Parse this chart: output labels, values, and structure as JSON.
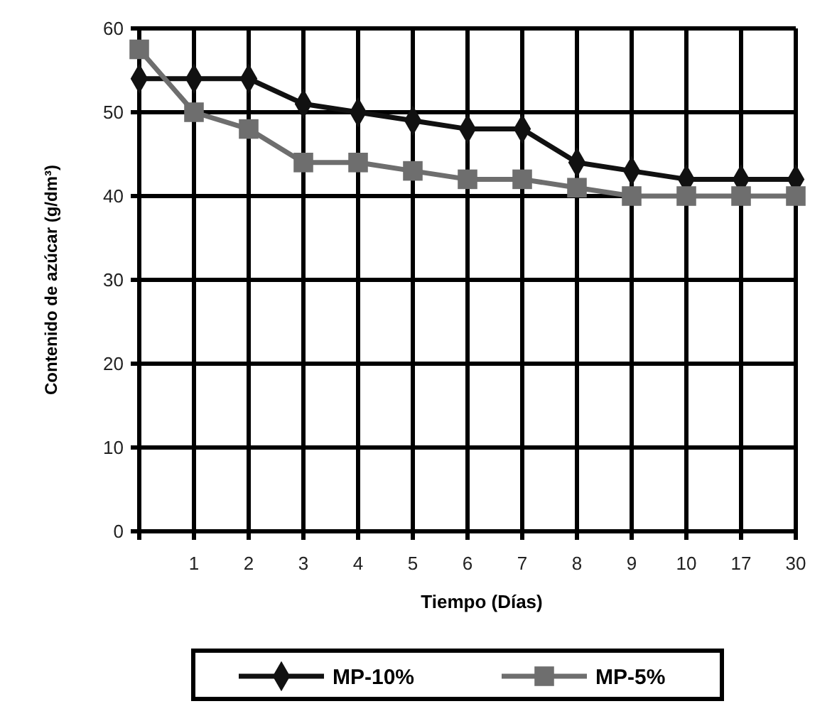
{
  "chart_data": {
    "type": "line",
    "xlabel": "Tiempo (Días)",
    "ylabel": "Contenido de azúcar (g/dm³)",
    "categories": [
      null,
      "1",
      "2",
      "3",
      "4",
      "5",
      "6",
      "7",
      "8",
      "9",
      "10",
      "17",
      "30"
    ],
    "series": [
      {
        "name": "MP-10%",
        "color": "#111111",
        "marker": "diamond",
        "values": [
          54,
          54,
          54,
          51,
          50,
          49,
          48,
          48,
          44,
          43,
          42,
          42,
          42
        ]
      },
      {
        "name": "MP-5%",
        "color": "#6e6e6e",
        "marker": "square",
        "values": [
          57.5,
          50,
          48,
          44,
          44,
          43,
          42,
          42,
          41,
          40,
          40,
          40,
          40
        ]
      }
    ],
    "ylim": [
      0,
      60
    ],
    "yticks": [
      0,
      10,
      20,
      30,
      40,
      50,
      60
    ],
    "grid": true,
    "legend": "bottom",
    "line_style": "solid"
  }
}
